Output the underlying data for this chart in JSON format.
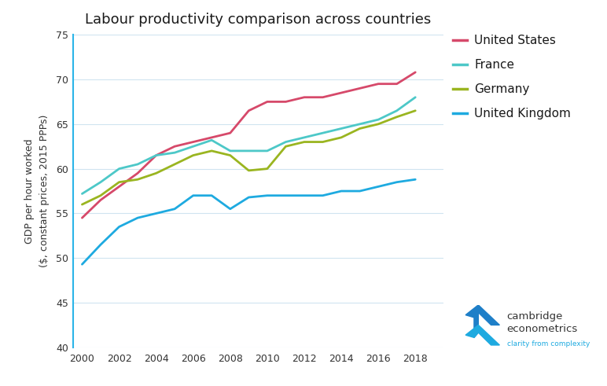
{
  "title": "Labour productivity comparison across countries",
  "ylabel": "GDP per hour worked\n($, constant prices, 2015 PPPs)",
  "years": [
    2000,
    2001,
    2002,
    2003,
    2004,
    2005,
    2006,
    2007,
    2008,
    2009,
    2010,
    2011,
    2012,
    2013,
    2014,
    2015,
    2016,
    2017,
    2018
  ],
  "series": {
    "United States": {
      "color": "#d6496a",
      "values": [
        54.5,
        56.5,
        58.0,
        59.5,
        61.5,
        62.5,
        63.0,
        63.5,
        64.0,
        66.5,
        67.5,
        67.5,
        68.0,
        68.0,
        68.5,
        69.0,
        69.5,
        69.5,
        70.8
      ]
    },
    "France": {
      "color": "#4dc8c8",
      "values": [
        57.2,
        58.5,
        60.0,
        60.5,
        61.5,
        61.8,
        62.5,
        63.2,
        62.0,
        62.0,
        62.0,
        63.0,
        63.5,
        64.0,
        64.5,
        65.0,
        65.5,
        66.5,
        68.0
      ]
    },
    "Germany": {
      "color": "#9ab520",
      "values": [
        56.0,
        57.0,
        58.5,
        58.8,
        59.5,
        60.5,
        61.5,
        62.0,
        61.5,
        59.8,
        60.0,
        62.5,
        63.0,
        63.0,
        63.5,
        64.5,
        65.0,
        65.8,
        66.5
      ]
    },
    "United Kingdom": {
      "color": "#1eaae0",
      "values": [
        49.3,
        51.5,
        53.5,
        54.5,
        55.0,
        55.5,
        57.0,
        57.0,
        55.5,
        56.8,
        57.0,
        57.0,
        57.0,
        57.0,
        57.5,
        57.5,
        58.0,
        58.5,
        58.8
      ]
    }
  },
  "xlim": [
    1999.5,
    2019.5
  ],
  "ylim": [
    40,
    75
  ],
  "yticks": [
    40,
    45,
    50,
    55,
    60,
    65,
    70,
    75
  ],
  "xticks": [
    2000,
    2002,
    2004,
    2006,
    2008,
    2010,
    2012,
    2014,
    2016,
    2018
  ],
  "grid_color": "#d0e4f0",
  "spine_color": "#2bb5e8",
  "background_color": "#ffffff",
  "line_width": 2.0,
  "title_fontsize": 13,
  "label_fontsize": 9,
  "tick_fontsize": 9,
  "legend_fontsize": 11,
  "legend_label_color": "#1a1a1a"
}
